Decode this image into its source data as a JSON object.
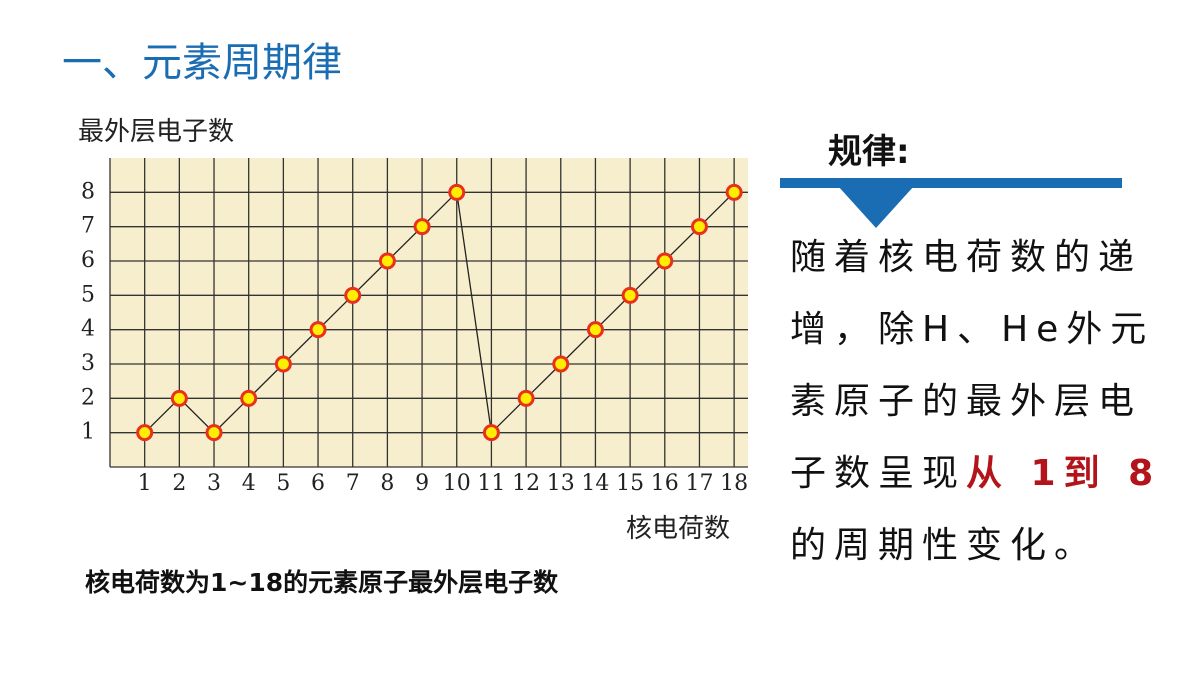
{
  "header": {
    "title": "一、元素周期律"
  },
  "chart_data": {
    "type": "line",
    "y_label": "最外层电子数",
    "x_label": "核电荷数",
    "x": [
      1,
      2,
      3,
      4,
      5,
      6,
      7,
      8,
      9,
      10,
      11,
      12,
      13,
      14,
      15,
      16,
      17,
      18
    ],
    "series": [
      {
        "color": "#222222",
        "marker_fill": "#ffee00",
        "marker_stroke": "#e8301c",
        "values": [
          1,
          2,
          1,
          2,
          3,
          4,
          5,
          6,
          7,
          8,
          1,
          2,
          3,
          4,
          5,
          6,
          7,
          8
        ]
      }
    ],
    "xlim": [
      0,
      18.4
    ],
    "ylim": [
      0,
      9
    ],
    "xticks": [
      1,
      2,
      3,
      4,
      5,
      6,
      7,
      8,
      9,
      10,
      11,
      12,
      13,
      14,
      15,
      16,
      17,
      18
    ],
    "yticks": [
      1,
      2,
      3,
      4,
      5,
      6,
      7,
      8
    ],
    "grid": true,
    "background": "#f7eecd"
  },
  "caption": "核电荷数为1~18的元素原子最外层电子数",
  "rule": {
    "heading": "规律:",
    "text_before": "随着核电荷数的递增，除H、He外元素原子的最外层电子数呈现",
    "highlight": "从 1到 8",
    "text_after": "的周期性变化。"
  }
}
